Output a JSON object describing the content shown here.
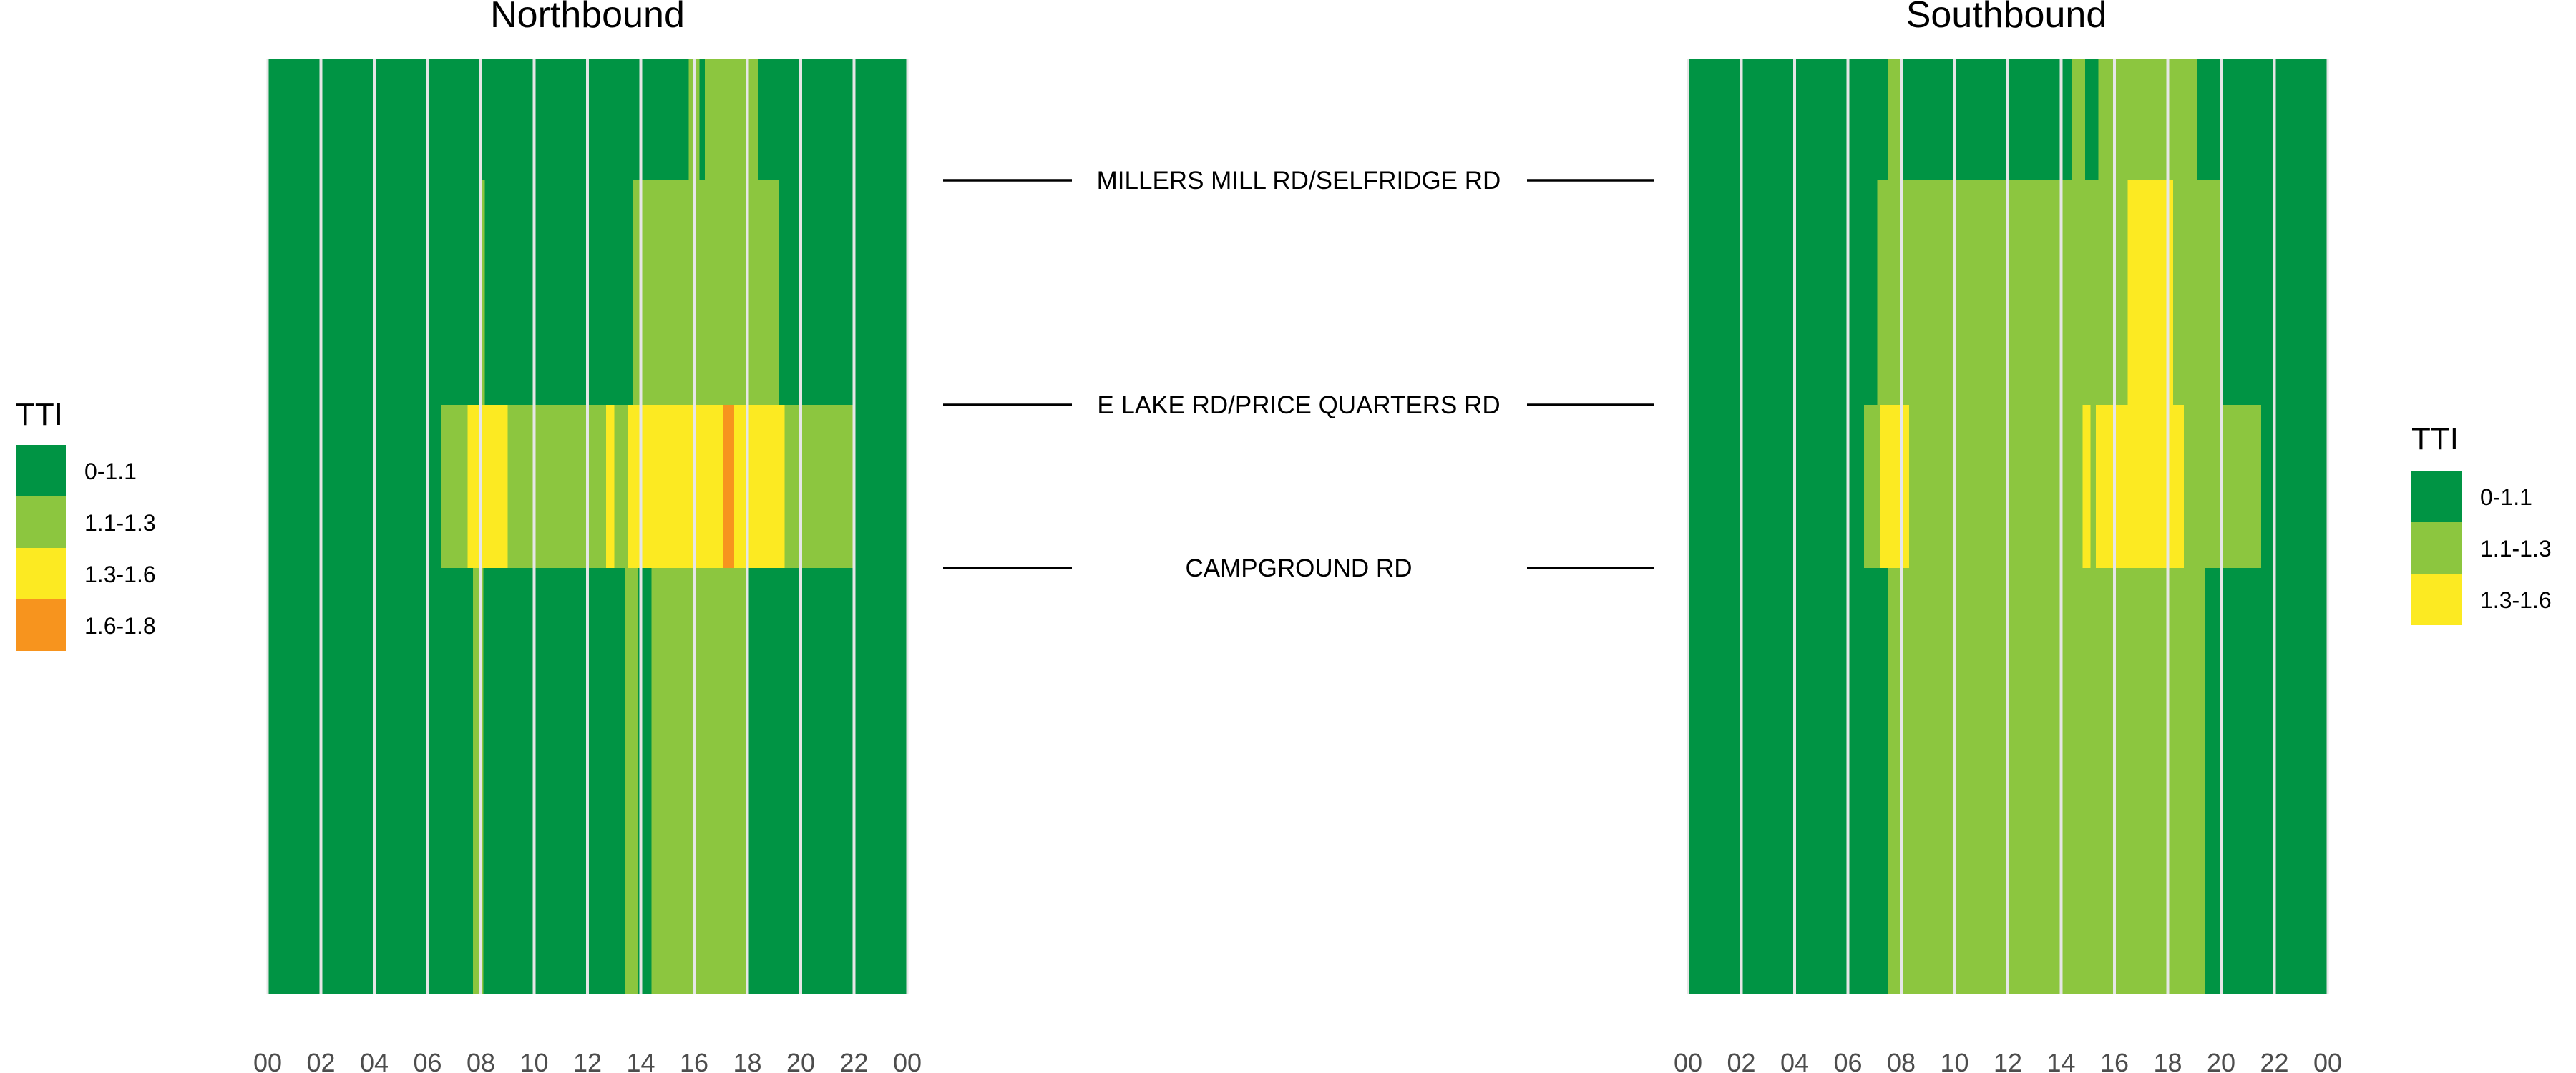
{
  "colors": {
    "0-1.1": "#009444",
    "1.1-1.3": "#8cc63f",
    "1.3-1.6": "#fcea22",
    "1.6-1.8": "#f7941e",
    "grid": "#e6e6e6",
    "road_line": "#000000"
  },
  "legend_left": {
    "title": "TTI",
    "items": [
      {
        "label": "0-1.1",
        "class": "0-1.1"
      },
      {
        "label": "1.1-1.3",
        "class": "1.1-1.3"
      },
      {
        "label": "1.3-1.6",
        "class": "1.3-1.6"
      },
      {
        "label": "1.6-1.8",
        "class": "1.6-1.8"
      }
    ]
  },
  "legend_right": {
    "title": "TTI",
    "items": [
      {
        "label": "0-1.1",
        "class": "0-1.1"
      },
      {
        "label": "1.1-1.3",
        "class": "1.1-1.3"
      },
      {
        "label": "1.3-1.6",
        "class": "1.3-1.6"
      }
    ]
  },
  "roads": [
    {
      "label": "MILLERS MILL RD/SELFRIDGE RD"
    },
    {
      "label": "E LAKE RD/PRICE QUARTERS RD"
    },
    {
      "label": "CAMPGROUND RD"
    }
  ],
  "chart_data": [
    {
      "type": "heatmap",
      "title": "Northbound",
      "x_unit": "hour of day",
      "xlim": [
        0,
        24
      ],
      "x_ticks": [
        "00",
        "02",
        "04",
        "06",
        "08",
        "10",
        "12",
        "14",
        "16",
        "18",
        "20",
        "22",
        "00"
      ],
      "segments": [
        {
          "name": "north of MILLERS MILL RD/SELFRIDGE RD",
          "cells": [
            {
              "start": 0,
              "end": 15.8,
              "class": "0-1.1"
            },
            {
              "start": 15.8,
              "end": 16.2,
              "class": "1.1-1.3"
            },
            {
              "start": 16.2,
              "end": 16.4,
              "class": "0-1.1"
            },
            {
              "start": 16.4,
              "end": 18.4,
              "class": "1.1-1.3"
            },
            {
              "start": 18.4,
              "end": 24,
              "class": "0-1.1"
            }
          ]
        },
        {
          "name": "MILLERS MILL RD/SELFRIDGE RD to E LAKE RD/PRICE QUARTERS RD",
          "cells": [
            {
              "start": 0,
              "end": 8,
              "class": "0-1.1"
            },
            {
              "start": 8,
              "end": 8.15,
              "class": "1.1-1.3"
            },
            {
              "start": 8.15,
              "end": 13.7,
              "class": "0-1.1"
            },
            {
              "start": 13.7,
              "end": 19.2,
              "class": "1.1-1.3"
            },
            {
              "start": 19.2,
              "end": 24,
              "class": "0-1.1"
            }
          ]
        },
        {
          "name": "E LAKE RD/PRICE QUARTERS RD to CAMPGROUND RD",
          "cells": [
            {
              "start": 0,
              "end": 6.5,
              "class": "0-1.1"
            },
            {
              "start": 6.5,
              "end": 7.5,
              "class": "1.1-1.3"
            },
            {
              "start": 7.5,
              "end": 9,
              "class": "1.3-1.6"
            },
            {
              "start": 9,
              "end": 12.7,
              "class": "1.1-1.3"
            },
            {
              "start": 12.7,
              "end": 13,
              "class": "1.3-1.6"
            },
            {
              "start": 13,
              "end": 13.5,
              "class": "1.1-1.3"
            },
            {
              "start": 13.5,
              "end": 17.1,
              "class": "1.3-1.6"
            },
            {
              "start": 17.1,
              "end": 17.5,
              "class": "1.6-1.8"
            },
            {
              "start": 17.5,
              "end": 19.4,
              "class": "1.3-1.6"
            },
            {
              "start": 19.4,
              "end": 22,
              "class": "1.1-1.3"
            },
            {
              "start": 22,
              "end": 24,
              "class": "0-1.1"
            }
          ]
        },
        {
          "name": "south of CAMPGROUND RD",
          "cells": [
            {
              "start": 0,
              "end": 7.7,
              "class": "0-1.1"
            },
            {
              "start": 7.7,
              "end": 8.1,
              "class": "1.1-1.3"
            },
            {
              "start": 8.1,
              "end": 13.4,
              "class": "0-1.1"
            },
            {
              "start": 13.4,
              "end": 13.9,
              "class": "1.1-1.3"
            },
            {
              "start": 13.9,
              "end": 14.4,
              "class": "0-1.1"
            },
            {
              "start": 14.4,
              "end": 18,
              "class": "1.1-1.3"
            },
            {
              "start": 18,
              "end": 24,
              "class": "0-1.1"
            }
          ]
        }
      ]
    },
    {
      "type": "heatmap",
      "title": "Southbound",
      "x_unit": "hour of day",
      "xlim": [
        0,
        24
      ],
      "x_ticks": [
        "00",
        "02",
        "04",
        "06",
        "08",
        "10",
        "12",
        "14",
        "16",
        "18",
        "20",
        "22",
        "00"
      ],
      "segments": [
        {
          "name": "north of MILLERS MILL RD/SELFRIDGE RD",
          "cells": [
            {
              "start": 0,
              "end": 7.5,
              "class": "0-1.1"
            },
            {
              "start": 7.5,
              "end": 8,
              "class": "1.1-1.3"
            },
            {
              "start": 8,
              "end": 14.4,
              "class": "0-1.1"
            },
            {
              "start": 14.4,
              "end": 14.9,
              "class": "1.1-1.3"
            },
            {
              "start": 14.9,
              "end": 15.4,
              "class": "0-1.1"
            },
            {
              "start": 15.4,
              "end": 19.1,
              "class": "1.1-1.3"
            },
            {
              "start": 19.1,
              "end": 24,
              "class": "0-1.1"
            }
          ]
        },
        {
          "name": "MILLERS MILL RD/SELFRIDGE RD to E LAKE RD/PRICE QUARTERS RD",
          "cells": [
            {
              "start": 0,
              "end": 7.1,
              "class": "0-1.1"
            },
            {
              "start": 7.1,
              "end": 16.5,
              "class": "1.1-1.3"
            },
            {
              "start": 16.5,
              "end": 18.2,
              "class": "1.3-1.6"
            },
            {
              "start": 18.2,
              "end": 20,
              "class": "1.1-1.3"
            },
            {
              "start": 20,
              "end": 24,
              "class": "0-1.1"
            }
          ]
        },
        {
          "name": "E LAKE RD/PRICE QUARTERS RD to CAMPGROUND RD",
          "cells": [
            {
              "start": 0,
              "end": 6.6,
              "class": "0-1.1"
            },
            {
              "start": 6.6,
              "end": 7.2,
              "class": "1.1-1.3"
            },
            {
              "start": 7.2,
              "end": 8.3,
              "class": "1.3-1.6"
            },
            {
              "start": 8.3,
              "end": 14.8,
              "class": "1.1-1.3"
            },
            {
              "start": 14.8,
              "end": 15.1,
              "class": "1.3-1.6"
            },
            {
              "start": 15.1,
              "end": 15.3,
              "class": "1.1-1.3"
            },
            {
              "start": 15.3,
              "end": 18.6,
              "class": "1.3-1.6"
            },
            {
              "start": 18.6,
              "end": 21.5,
              "class": "1.1-1.3"
            },
            {
              "start": 21.5,
              "end": 24,
              "class": "0-1.1"
            }
          ]
        },
        {
          "name": "south of CAMPGROUND RD",
          "cells": [
            {
              "start": 0,
              "end": 7.5,
              "class": "0-1.1"
            },
            {
              "start": 7.5,
              "end": 19.4,
              "class": "1.1-1.3"
            },
            {
              "start": 19.4,
              "end": 24,
              "class": "0-1.1"
            }
          ]
        }
      ]
    }
  ]
}
